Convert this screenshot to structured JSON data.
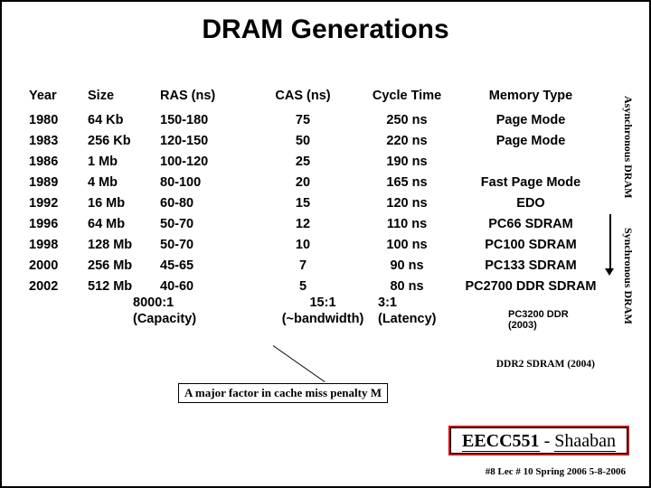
{
  "title": "DRAM Generations",
  "headers": {
    "year": "Year",
    "size": "Size",
    "ras": "RAS (ns)",
    "cas": "CAS (ns)",
    "cycle": "Cycle Time",
    "mem": "Memory Type"
  },
  "rows": [
    {
      "year": "1980",
      "size": "64 Kb",
      "ras": "150-180",
      "cas": "75",
      "cycle": "250 ns",
      "mem": "Page Mode"
    },
    {
      "year": "1983",
      "size": "256 Kb",
      "ras": "120-150",
      "cas": "50",
      "cycle": "220 ns",
      "mem": "Page Mode"
    },
    {
      "year": "1986",
      "size": "1 Mb",
      "ras": "100-120",
      "cas": "25",
      "cycle": "190 ns",
      "mem": ""
    },
    {
      "year": "1989",
      "size": "4 Mb",
      "ras": "80-100",
      "cas": "20",
      "cycle": "165 ns",
      "mem": "Fast Page Mode"
    },
    {
      "year": "1992",
      "size": "16 Mb",
      "ras": "60-80",
      "cas": "15",
      "cycle": "120 ns",
      "mem": "EDO"
    },
    {
      "year": "1996",
      "size": "64 Mb",
      "ras": "50-70",
      "cas": "12",
      "cycle": "110 ns",
      "mem": "PC66 SDRAM"
    },
    {
      "year": "1998",
      "size": "128 Mb",
      "ras": "50-70",
      "cas": "10",
      "cycle": "100 ns",
      "mem": "PC100 SDRAM"
    },
    {
      "year": "2000",
      "size": "256 Mb",
      "ras": "45-65",
      "cas": "7",
      "cycle": "90 ns",
      "mem": "PC133 SDRAM"
    },
    {
      "year": "2002",
      "size": "512 Mb",
      "ras": "40-60",
      "cas": "5",
      "cycle": "80 ns",
      "mem": "PC2700 DDR SDRAM"
    }
  ],
  "ratios": {
    "capacity_top": "8000:1",
    "capacity_bot": "(Capacity)",
    "bw_top": "15:1",
    "bw_bot": "(~bandwidth)",
    "lat_top": "3:1",
    "lat_bot": "(Latency)",
    "note": "PC3200 DDR (2003)"
  },
  "side_labels": {
    "async": "Asynchronous DRAM",
    "sync": "Synchronous DRAM"
  },
  "ddr2_note": "DDR2 SDRAM (2004)",
  "callout": "A major factor in cache miss penalty M",
  "course": {
    "prefix": "EECC551",
    "sep": " - ",
    "name": "Shaaban"
  },
  "footer": "#8   Lec # 10  Spring 2006  5-8-2006",
  "colors": {
    "accent": "#c00",
    "border": "#000",
    "bg": "#ffffff"
  }
}
